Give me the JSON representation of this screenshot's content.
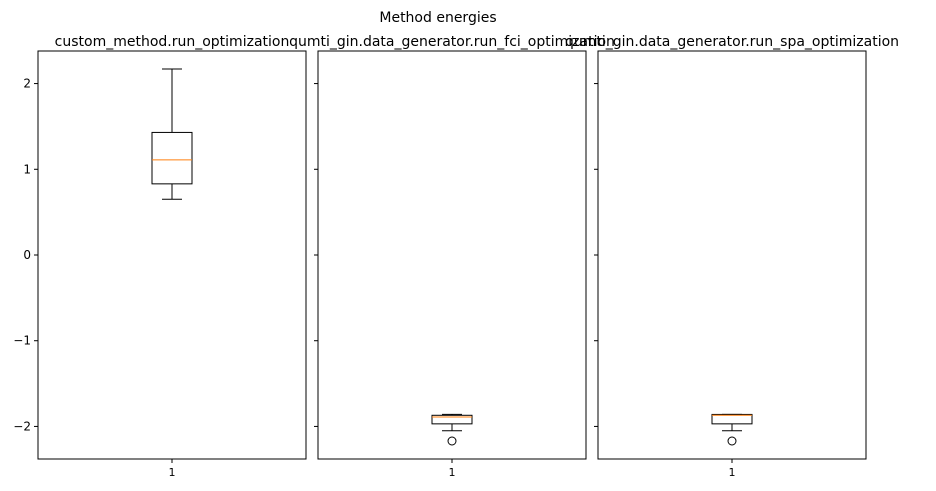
{
  "figure": {
    "title": "Method energies"
  },
  "chart_data": [
    {
      "type": "box",
      "title": "custom_method.run_optimization",
      "categories": [
        "1"
      ],
      "ylim": [
        -2.38,
        2.38
      ],
      "yticks": [
        -2,
        -1,
        0,
        1,
        2
      ],
      "boxes": [
        {
          "whislo": 0.65,
          "q1": 0.83,
          "med": 1.11,
          "q3": 1.43,
          "whishi": 2.17,
          "fliers": []
        }
      ],
      "colors": {
        "box": "#000000",
        "median": "#ff7f0e"
      }
    },
    {
      "type": "box",
      "title": "qumti_gin.data_generator.run_fci_optimization",
      "categories": [
        "1"
      ],
      "ylim": [
        -2.38,
        2.38
      ],
      "yticks": [
        -2,
        -1,
        0,
        1,
        2
      ],
      "boxes": [
        {
          "whislo": -2.05,
          "q1": -1.97,
          "med": -1.89,
          "q3": -1.87,
          "whishi": -1.86,
          "fliers": [
            -2.17
          ]
        }
      ],
      "colors": {
        "box": "#000000",
        "median": "#ff7f0e"
      }
    },
    {
      "type": "box",
      "title": "qumti_gin.data_generator.run_spa_optimization",
      "categories": [
        "1"
      ],
      "ylim": [
        -2.38,
        2.38
      ],
      "yticks": [
        -2,
        -1,
        0,
        1,
        2
      ],
      "boxes": [
        {
          "whislo": -2.05,
          "q1": -1.97,
          "med": -1.87,
          "q3": -1.86,
          "whishi": -1.86,
          "fliers": [
            -2.17
          ]
        }
      ],
      "colors": {
        "box": "#000000",
        "median": "#ff7f0e"
      }
    }
  ]
}
